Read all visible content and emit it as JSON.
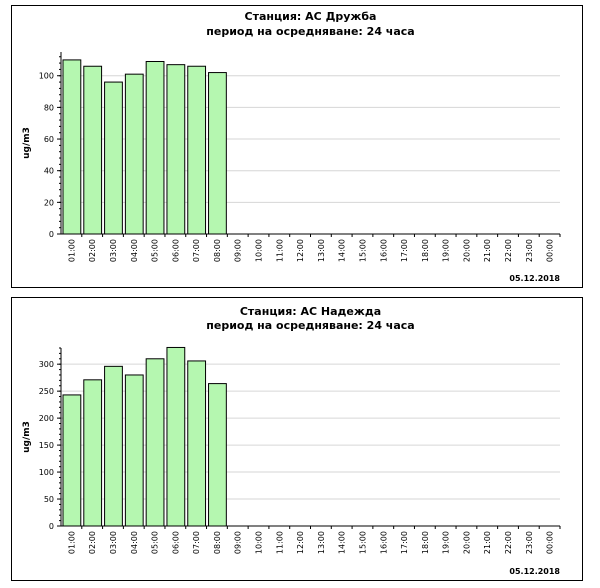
{
  "colors": {
    "bar_fill": "#b5f7b0",
    "bar_stroke": "#000000",
    "grid": "#d6d6d6",
    "axis": "#000000"
  },
  "chart_data": [
    {
      "type": "bar",
      "title": "Станция: АС Дружба",
      "subtitle": "период на осредняване: 24 часа",
      "ylabel": "ug/m3",
      "xlabel": "",
      "date": "05.12.2018",
      "ylim": [
        0,
        115
      ],
      "yticks": [
        0,
        20,
        40,
        60,
        80,
        100
      ],
      "grid": true,
      "categories": [
        "01:00",
        "02:00",
        "03:00",
        "04:00",
        "05:00",
        "06:00",
        "07:00",
        "08:00",
        "09:00",
        "10:00",
        "11:00",
        "12:00",
        "13:00",
        "14:00",
        "15:00",
        "16:00",
        "17:00",
        "18:00",
        "19:00",
        "20:00",
        "21:00",
        "22:00",
        "23:00",
        "00:00"
      ],
      "values": [
        110,
        106,
        96,
        101,
        109,
        107,
        106,
        102,
        null,
        null,
        null,
        null,
        null,
        null,
        null,
        null,
        null,
        null,
        null,
        null,
        null,
        null,
        null,
        null
      ]
    },
    {
      "type": "bar",
      "title": "Станция: АС Надежда",
      "subtitle": "период на осредняване: 24 часа",
      "ylabel": "ug/m3",
      "xlabel": "",
      "date": "05.12.2018",
      "ylim": [
        0,
        330
      ],
      "yticks": [
        0,
        50,
        100,
        150,
        200,
        250,
        300
      ],
      "grid": true,
      "categories": [
        "01:00",
        "02:00",
        "03:00",
        "04:00",
        "05:00",
        "06:00",
        "07:00",
        "08:00",
        "09:00",
        "10:00",
        "11:00",
        "12:00",
        "13:00",
        "14:00",
        "15:00",
        "16:00",
        "17:00",
        "18:00",
        "19:00",
        "20:00",
        "21:00",
        "22:00",
        "23:00",
        "00:00"
      ],
      "values": [
        243,
        271,
        296,
        280,
        310,
        331,
        306,
        264,
        null,
        null,
        null,
        null,
        null,
        null,
        null,
        null,
        null,
        null,
        null,
        null,
        null,
        null,
        null,
        null
      ]
    }
  ]
}
